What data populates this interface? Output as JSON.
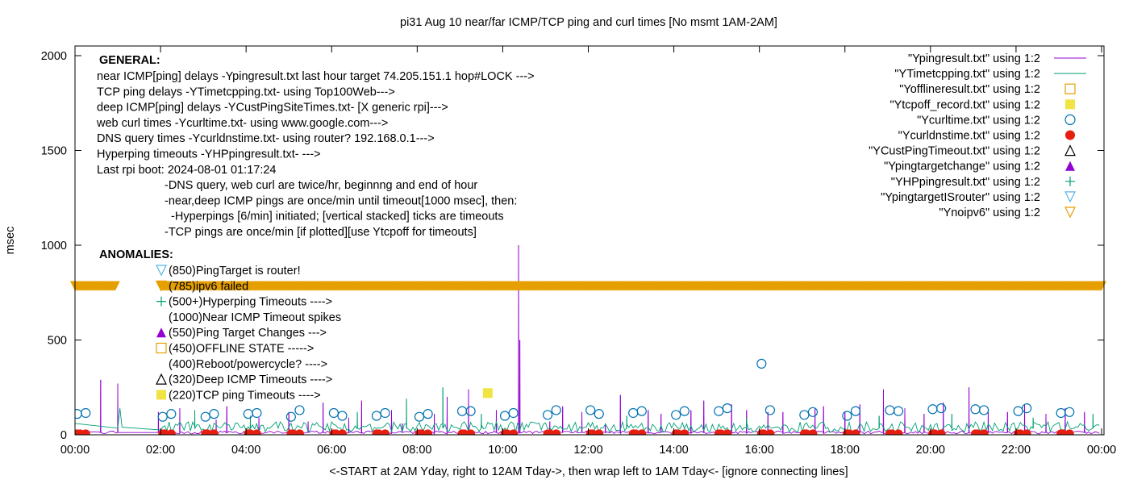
{
  "chart_data": {
    "type": "line",
    "title": "pi31 Aug 10  near/far ICMP/TCP ping and curl times [No msmt 1AM-2AM]",
    "xlabel": "<-START at 2AM Yday, right to 12AM Tday->, then wrap left to 1AM Tday<- [ignore connecting lines]",
    "ylabel": "msec",
    "xlim": [
      0,
      24
    ],
    "ylim": [
      0,
      2100
    ],
    "x_tick_labels": [
      "00:00",
      "02:00",
      "04:00",
      "06:00",
      "08:00",
      "10:00",
      "12:00",
      "14:00",
      "16:00",
      "18:00",
      "20:00",
      "22:00",
      "00:00"
    ],
    "y_tick_labels": [
      "0",
      "500",
      "1000",
      "1500",
      "2000"
    ],
    "y_tick_values": [
      0,
      500,
      1000,
      1500,
      2000
    ],
    "grid": false,
    "legend_position": "top-right",
    "legend": [
      {
        "label": "\"Ypingresult.txt\" using 1:2",
        "marker": "line",
        "color": "#9400d3"
      },
      {
        "label": "\"YTimetcpping.txt\" using 1:2",
        "marker": "line",
        "color": "#009e73"
      },
      {
        "label": "\"Yofflineresult.txt\" using 1:2",
        "marker": "open-square",
        "color": "#e69f00"
      },
      {
        "label": "\"Ytcpoff_record.txt\" using 1:2",
        "marker": "filled-square",
        "color": "#f0e442"
      },
      {
        "label": "\"Ycurltime.txt\" using 1:2",
        "marker": "open-circle",
        "color": "#0072b2"
      },
      {
        "label": "\"Ycurldnstime.txt\" using 1:2",
        "marker": "filled-circle",
        "color": "#e51e10"
      },
      {
        "label": "\"YCustPingTimeout.txt\" using 1:2",
        "marker": "open-triangle-up",
        "color": "#000000"
      },
      {
        "label": "\"Ypingtargetchange\" using 1:2",
        "marker": "filled-triangle-up",
        "color": "#9400d3"
      },
      {
        "label": "\"YHPpingresult.txt\" using 1:2",
        "marker": "plus",
        "color": "#009e73"
      },
      {
        "label": "\"YpingtargetISrouter\" using 1:2",
        "marker": "open-triangle-down",
        "color": "#56b4e9"
      },
      {
        "label": "\"Ynoipv6\" using 1:2",
        "marker": "open-triangle-down",
        "color": "#e69f00"
      }
    ],
    "annotations": {
      "general_heading": "GENERAL:",
      "general_lines": [
        "near ICMP[ping] delays -Ypingresult.txt last hour target 74.205.151.1 hop#LOCK --->",
        "TCP ping delays -YTimetcpping.txt- using Top100Web--->",
        "deep ICMP[ping] delays -YCustPingSiteTimes.txt- [X generic rpi]--->",
        "web curl times -Ycurltime.txt- using www.google.com--->",
        "DNS query times -Ycurldnstime.txt- using router? 192.168.0.1--->",
        "Hyperping timeouts -YHPpingresult.txt- --->",
        "Last rpi boot: 2024-08-01 01:17:24"
      ],
      "notes": [
        "-DNS query, web curl are twice/hr, beginnng and end of hour",
        "-near,deep ICMP pings are once/min until timeout[1000 msec], then:",
        "  -Hyperpings [6/min] initiated; [vertical stacked] ticks are timeouts",
        "-TCP pings are once/min [if plotted][use Ytcpoff for timeouts]"
      ],
      "anomalies_heading": "ANOMALIES:",
      "anomalies": [
        {
          "marker": "open-triangle-down",
          "color": "#56b4e9",
          "text": "(850)PingTarget is router!"
        },
        {
          "marker": "open-triangle-down",
          "color": "#e69f00",
          "text": "(785)ipv6 failed"
        },
        {
          "marker": "plus",
          "color": "#009e73",
          "text": "(500+)Hyperping Timeouts ---->"
        },
        {
          "marker": "none",
          "color": "#000000",
          "text": "(1000)Near ICMP Timeout spikes"
        },
        {
          "marker": "filled-triangle-up",
          "color": "#9400d3",
          "text": "(550)Ping Target Changes --->"
        },
        {
          "marker": "open-square",
          "color": "#e69f00",
          "text": "(450)OFFLINE STATE ----->"
        },
        {
          "marker": "none",
          "color": "#000000",
          "text": "(400)Reboot/powercycle? ---->"
        },
        {
          "marker": "open-triangle-up",
          "color": "#000000",
          "text": "(320)Deep ICMP Timeouts ---->"
        },
        {
          "marker": "filled-square",
          "color": "#f0e442",
          "text": "(220)TCP ping Timeouts ---->"
        }
      ]
    },
    "series": [
      {
        "name": "\"Ypingresult.txt\" using 1:2",
        "color": "#9400d3",
        "baseline": 12,
        "spikes": [
          {
            "x": 0.6,
            "y": 290
          },
          {
            "x": 1.0,
            "y": 270
          },
          {
            "x": 1.95,
            "y": 120
          },
          {
            "x": 2.45,
            "y": 140
          },
          {
            "x": 3.3,
            "y": 80
          },
          {
            "x": 3.55,
            "y": 150
          },
          {
            "x": 4.3,
            "y": 90
          },
          {
            "x": 5.0,
            "y": 120
          },
          {
            "x": 5.45,
            "y": 70
          },
          {
            "x": 5.8,
            "y": 170
          },
          {
            "x": 6.4,
            "y": 90
          },
          {
            "x": 6.7,
            "y": 180
          },
          {
            "x": 7.4,
            "y": 130
          },
          {
            "x": 7.65,
            "y": 60
          },
          {
            "x": 8.4,
            "y": 110
          },
          {
            "x": 8.7,
            "y": 200
          },
          {
            "x": 9.2,
            "y": 240
          },
          {
            "x": 9.85,
            "y": 130
          },
          {
            "x": 10.37,
            "y": 1000
          },
          {
            "x": 10.4,
            "y": 500
          },
          {
            "x": 11.1,
            "y": 70
          },
          {
            "x": 11.4,
            "y": 150
          },
          {
            "x": 11.85,
            "y": 120
          },
          {
            "x": 12.4,
            "y": 60
          },
          {
            "x": 12.75,
            "y": 210
          },
          {
            "x": 13.4,
            "y": 130
          },
          {
            "x": 13.7,
            "y": 110
          },
          {
            "x": 14.4,
            "y": 130
          },
          {
            "x": 14.7,
            "y": 180
          },
          {
            "x": 15.35,
            "y": 160
          },
          {
            "x": 15.7,
            "y": 130
          },
          {
            "x": 16.2,
            "y": 120
          },
          {
            "x": 16.55,
            "y": 120
          },
          {
            "x": 17.3,
            "y": 140
          },
          {
            "x": 17.5,
            "y": 150
          },
          {
            "x": 18.0,
            "y": 120
          },
          {
            "x": 18.35,
            "y": 160
          },
          {
            "x": 18.9,
            "y": 240
          },
          {
            "x": 19.4,
            "y": 140
          },
          {
            "x": 19.85,
            "y": 110
          },
          {
            "x": 20.3,
            "y": 170
          },
          {
            "x": 20.9,
            "y": 250
          },
          {
            "x": 21.35,
            "y": 130
          },
          {
            "x": 21.8,
            "y": 120
          },
          {
            "x": 22.2,
            "y": 160
          },
          {
            "x": 22.7,
            "y": 110
          },
          {
            "x": 23.15,
            "y": 140
          },
          {
            "x": 23.6,
            "y": 120
          }
        ]
      },
      {
        "name": "\"YTimetcpping.txt\" using 1:2",
        "color": "#009e73",
        "baseline": 35,
        "start_segment": [
          {
            "x": 0.0,
            "y": 60
          },
          {
            "x": 1.0,
            "y": 35
          },
          {
            "x": 1.05,
            "y": 140
          },
          {
            "x": 1.1,
            "y": 40
          },
          {
            "x": 2.0,
            "y": 25
          }
        ],
        "spikes": [
          {
            "x": 2.8,
            "y": 130
          },
          {
            "x": 4.1,
            "y": 100
          },
          {
            "x": 6.6,
            "y": 120
          },
          {
            "x": 7.75,
            "y": 190
          },
          {
            "x": 8.6,
            "y": 250
          },
          {
            "x": 9.5,
            "y": 110
          },
          {
            "x": 12.9,
            "y": 100
          },
          {
            "x": 15.7,
            "y": 90
          },
          {
            "x": 18.8,
            "y": 100
          },
          {
            "x": 20.5,
            "y": 110
          },
          {
            "x": 22.4,
            "y": 90
          },
          {
            "x": 23.8,
            "y": 110
          }
        ]
      }
    ],
    "markers": {
      "Ycurltime": [
        {
          "x": 0.05,
          "y": 110
        },
        {
          "x": 0.25,
          "y": 115
        },
        {
          "x": 2.05,
          "y": 95
        },
        {
          "x": 2.25,
          "y": 110
        },
        {
          "x": 3.05,
          "y": 95
        },
        {
          "x": 3.25,
          "y": 110
        },
        {
          "x": 4.05,
          "y": 110
        },
        {
          "x": 4.25,
          "y": 115
        },
        {
          "x": 5.05,
          "y": 95
        },
        {
          "x": 5.25,
          "y": 130
        },
        {
          "x": 6.05,
          "y": 115
        },
        {
          "x": 6.25,
          "y": 100
        },
        {
          "x": 7.05,
          "y": 100
        },
        {
          "x": 7.25,
          "y": 115
        },
        {
          "x": 8.05,
          "y": 95
        },
        {
          "x": 8.25,
          "y": 110
        },
        {
          "x": 9.05,
          "y": 125
        },
        {
          "x": 9.25,
          "y": 125
        },
        {
          "x": 10.05,
          "y": 100
        },
        {
          "x": 10.25,
          "y": 115
        },
        {
          "x": 11.05,
          "y": 105
        },
        {
          "x": 11.25,
          "y": 130
        },
        {
          "x": 12.05,
          "y": 130
        },
        {
          "x": 12.25,
          "y": 110
        },
        {
          "x": 13.05,
          "y": 115
        },
        {
          "x": 13.25,
          "y": 125
        },
        {
          "x": 14.05,
          "y": 105
        },
        {
          "x": 14.25,
          "y": 125
        },
        {
          "x": 15.05,
          "y": 125
        },
        {
          "x": 15.25,
          "y": 140
        },
        {
          "x": 16.05,
          "y": 375
        },
        {
          "x": 16.25,
          "y": 130
        },
        {
          "x": 17.05,
          "y": 105
        },
        {
          "x": 17.25,
          "y": 120
        },
        {
          "x": 18.05,
          "y": 100
        },
        {
          "x": 18.25,
          "y": 125
        },
        {
          "x": 19.05,
          "y": 130
        },
        {
          "x": 19.25,
          "y": 125
        },
        {
          "x": 20.05,
          "y": 135
        },
        {
          "x": 20.25,
          "y": 140
        },
        {
          "x": 21.05,
          "y": 135
        },
        {
          "x": 21.25,
          "y": 130
        },
        {
          "x": 22.05,
          "y": 125
        },
        {
          "x": 22.25,
          "y": 140
        },
        {
          "x": 23.05,
          "y": 115
        },
        {
          "x": 23.25,
          "y": 120
        }
      ],
      "Ycurldnstime_x": [
        0.05,
        0.12,
        0.25,
        2.05,
        2.1,
        2.25,
        3.05,
        3.1,
        3.25,
        4.05,
        4.1,
        4.25,
        5.05,
        5.1,
        5.25,
        6.05,
        6.1,
        6.25,
        7.05,
        7.1,
        7.25,
        8.05,
        8.1,
        8.25,
        9.05,
        9.1,
        9.25,
        10.05,
        10.1,
        10.25,
        11.05,
        11.1,
        11.25,
        12.05,
        12.1,
        12.25,
        13.05,
        13.1,
        13.25,
        14.05,
        14.1,
        14.25,
        15.05,
        15.1,
        15.25,
        16.05,
        16.1,
        16.25,
        17.05,
        17.1,
        17.25,
        18.05,
        18.1,
        18.25,
        19.05,
        19.1,
        19.25,
        20.05,
        20.1,
        20.25,
        21.05,
        21.1,
        21.25,
        22.05,
        22.1,
        22.25,
        23.05,
        23.1,
        23.25
      ],
      "Ycurldnstime_y": 5,
      "Ytcpoff_record": [
        {
          "x": 9.65,
          "y": 220
        }
      ],
      "Ynoipv6": {
        "y": 785,
        "start": 0,
        "end": 24,
        "gap": [
          0.95,
          2.0
        ]
      }
    }
  }
}
